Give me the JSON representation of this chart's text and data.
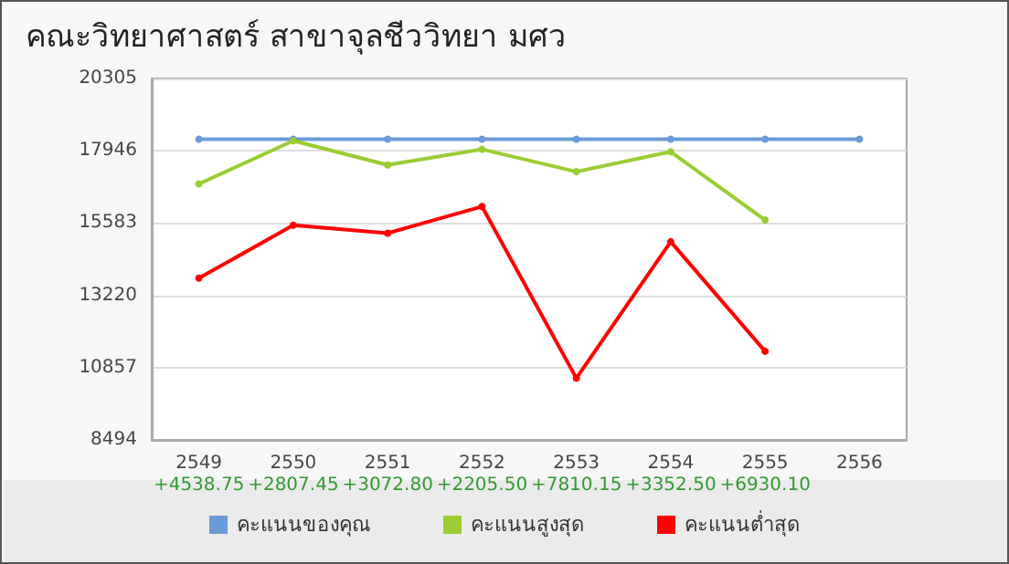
{
  "chart_data": {
    "type": "line",
    "title": "คณะวิทยาศาสตร์ สาขาจุลชีววิทยา มศว",
    "categories": [
      "2549",
      "2550",
      "2551",
      "2552",
      "2553",
      "2554",
      "2555",
      "2556"
    ],
    "series": [
      {
        "name": "คะแนนของคุณ",
        "color": "#6a9bd8",
        "values": [
          18320,
          18320,
          18320,
          18320,
          18320,
          18320,
          18320,
          18320
        ]
      },
      {
        "name": "คะแนนสูงสุด",
        "color": "#9acd32",
        "values": [
          16860,
          18270,
          17480,
          17990,
          17260,
          17910,
          15680,
          null
        ]
      },
      {
        "name": "คะแนนต่ำสุด",
        "color": "#ff0000",
        "values": [
          13780,
          15510,
          15250,
          16120,
          10510,
          14970,
          11390,
          null
        ]
      }
    ],
    "ylim": [
      8494,
      20305
    ],
    "yticks": [
      8494,
      10857,
      13220,
      15583,
      17946,
      20305
    ],
    "annotations": [
      "+4538.75",
      "+2807.45",
      "+3072.80",
      "+2205.50",
      "+7810.15",
      "+3352.50",
      "+6930.10"
    ],
    "grid": "y",
    "legend": "bottom",
    "marker": "circle",
    "line_style": "solid"
  }
}
